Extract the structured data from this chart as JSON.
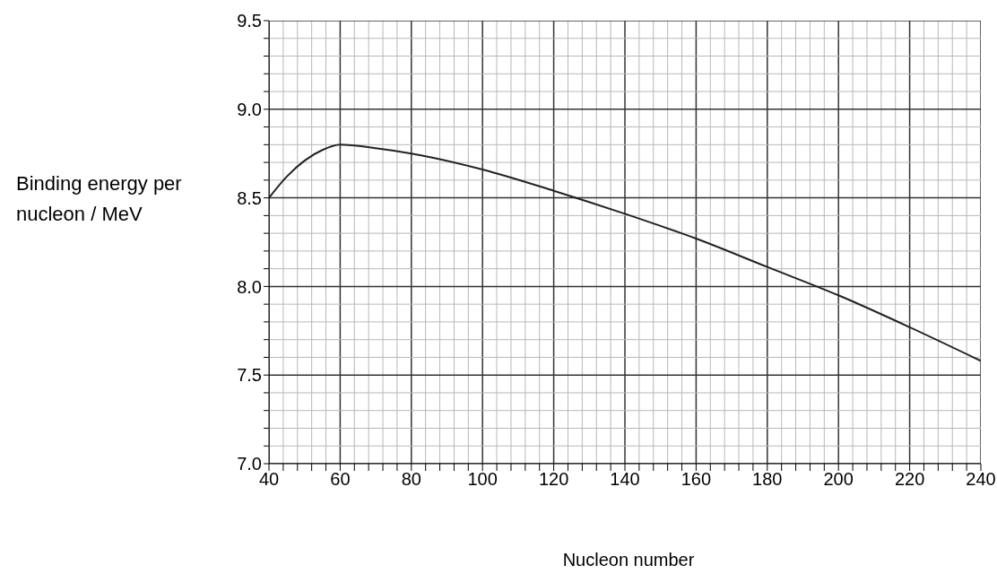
{
  "chart_data": {
    "type": "line",
    "xlabel": "Nucleon number",
    "ylabel": "Binding energy per nucleon / MeV",
    "x": [
      40,
      45,
      50,
      55,
      60,
      70,
      80,
      100,
      120,
      140,
      160,
      180,
      200,
      220,
      240
    ],
    "series": [
      {
        "color": "#222222",
        "values": [
          8.5,
          8.62,
          8.71,
          8.77,
          8.8,
          8.78,
          8.75,
          8.66,
          8.54,
          8.41,
          8.27,
          8.11,
          7.95,
          7.77,
          7.58
        ]
      }
    ],
    "xlim": [
      40,
      240
    ],
    "ylim": [
      7,
      9.5
    ],
    "xticks": [
      40,
      {
        "value": 44,
        "label": null
      },
      {
        "value": 48,
        "label": null
      },
      {
        "value": 52,
        "label": null
      },
      {
        "value": 56,
        "label": null
      },
      60,
      {
        "value": 64,
        "label": null
      },
      {
        "value": 68,
        "label": null
      },
      {
        "value": 72,
        "label": null
      },
      {
        "value": 76,
        "label": null
      },
      80,
      {
        "value": 84,
        "label": null
      },
      {
        "value": 88,
        "label": null
      },
      {
        "value": 92,
        "label": null
      },
      {
        "value": 96,
        "label": null
      },
      100,
      {
        "value": 104,
        "label": null
      },
      {
        "value": 108,
        "label": null
      },
      {
        "value": 112,
        "label": null
      },
      {
        "value": 116,
        "label": null
      },
      120,
      {
        "value": 124,
        "label": null
      },
      {
        "value": 128,
        "label": null
      },
      {
        "value": 132,
        "label": null
      },
      {
        "value": 136,
        "label": null
      },
      140,
      {
        "value": 144,
        "label": null
      },
      {
        "value": 148,
        "label": null
      },
      {
        "value": 152,
        "label": null
      },
      {
        "value": 156,
        "label": null
      },
      160,
      {
        "value": 164,
        "label": null
      },
      {
        "value": 168,
        "label": null
      },
      {
        "value": 172,
        "label": null
      },
      {
        "value": 176,
        "label": null
      },
      180,
      {
        "value": 184,
        "label": null
      },
      {
        "value": 188,
        "label": null
      },
      {
        "value": 192,
        "label": null
      },
      {
        "value": 196,
        "label": null
      },
      200,
      {
        "value": 204,
        "label": null
      },
      {
        "value": 208,
        "label": null
      },
      {
        "value": 212,
        "label": null
      },
      {
        "value": 216,
        "label": null
      },
      220,
      {
        "value": 224,
        "label": null
      },
      {
        "value": 228,
        "label": null
      },
      {
        "value": 232,
        "label": null
      },
      {
        "value": 236,
        "label": null
      },
      240
    ],
    "yticks": [
      {
        "value": 7,
        "label": "7.0"
      },
      {
        "value": 7.1,
        "label": null
      },
      {
        "value": 7.2,
        "label": null
      },
      {
        "value": 7.3,
        "label": null
      },
      {
        "value": 7.4,
        "label": null
      },
      7.5,
      {
        "value": 7.6,
        "label": null
      },
      {
        "value": 7.7,
        "label": null
      },
      {
        "value": 7.8,
        "label": null
      },
      {
        "value": 7.9,
        "label": null
      },
      {
        "value": 8,
        "label": "8.0"
      },
      {
        "value": 8.1,
        "label": null
      },
      {
        "value": 8.2,
        "label": null
      },
      {
        "value": 8.3,
        "label": null
      },
      {
        "value": 8.4,
        "label": null
      },
      8.5,
      {
        "value": 8.6,
        "label": null
      },
      {
        "value": 8.7,
        "label": null
      },
      {
        "value": 8.8,
        "label": null
      },
      {
        "value": 8.9,
        "label": null
      },
      {
        "value": 9,
        "label": "9.0"
      },
      {
        "value": 9.1,
        "label": null
      },
      {
        "value": 9.2,
        "label": null
      },
      {
        "value": 9.3,
        "label": null
      },
      {
        "value": 9.4,
        "label": null
      },
      9.5
    ],
    "grid": true,
    "marker": "none",
    "line_style": "solid"
  }
}
